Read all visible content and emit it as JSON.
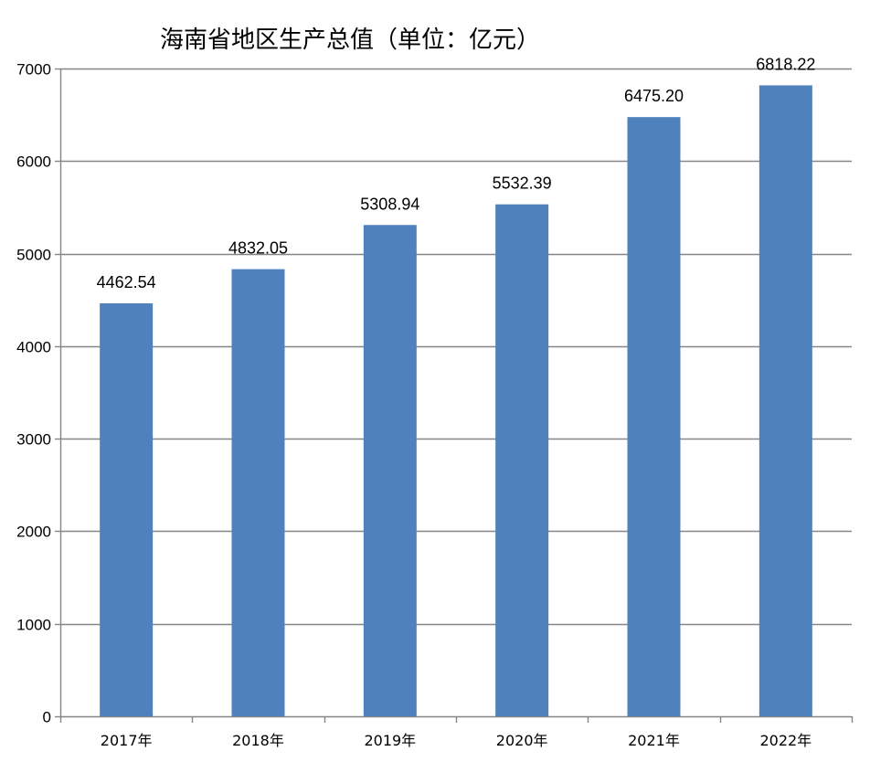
{
  "chart_data": {
    "type": "bar",
    "title": "海南省地区生产总值（单位：亿元）",
    "xlabel": "",
    "ylabel": "",
    "categories": [
      "2017年",
      "2018年",
      "2019年",
      "2020年",
      "2021年",
      "2022年"
    ],
    "values": [
      4462.54,
      4832.05,
      5308.94,
      5532.39,
      6475.2,
      6818.22
    ],
    "value_labels": [
      "4462.54",
      "4832.05",
      "5308.94",
      "5532.39",
      "6475.20",
      "6818.22"
    ],
    "ylim": [
      0,
      7000
    ],
    "yticks": [
      0,
      1000,
      2000,
      3000,
      4000,
      5000,
      6000,
      7000
    ],
    "ytick_labels": [
      "0",
      "1000",
      "2000",
      "3000",
      "4000",
      "5000",
      "6000",
      "7000"
    ],
    "grid": true,
    "legend": "none",
    "colors": {
      "bar": "#4F81BD",
      "grid": "#868686",
      "axis": "#868686",
      "text": "#000000"
    }
  }
}
